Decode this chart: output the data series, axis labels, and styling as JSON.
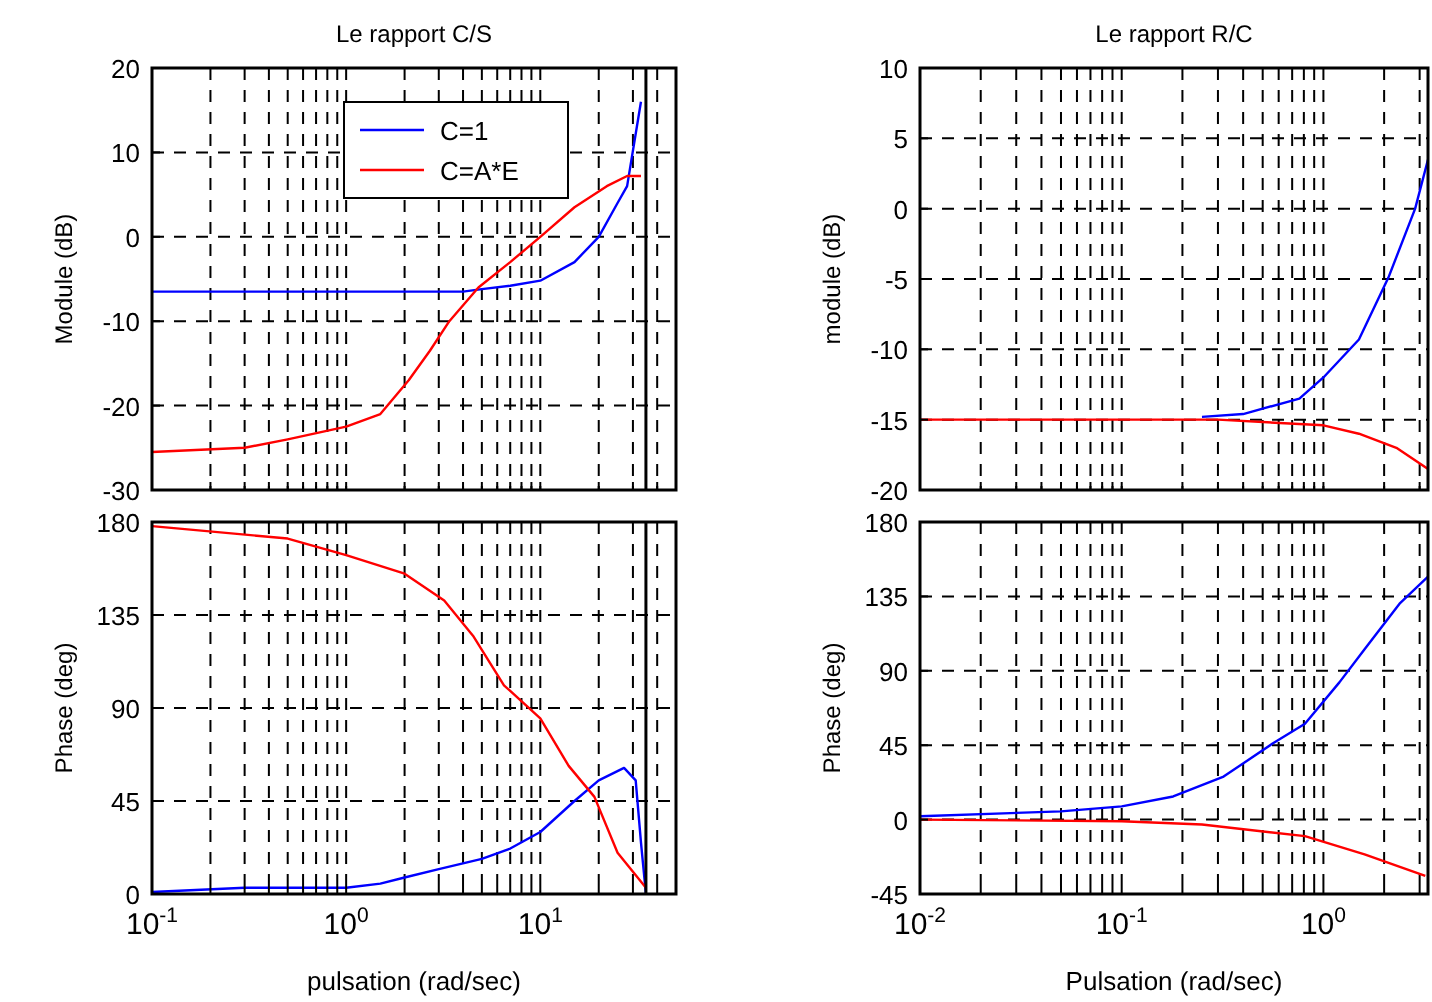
{
  "chart_data": [
    {
      "type": "line",
      "title": "Le rapport C/S",
      "ylabel": "Module (dB)",
      "log": "x",
      "grid": true,
      "legend": "top",
      "tick_labels": "y",
      "line_style": "solid",
      "xlim": [
        0.1,
        50
      ],
      "ylim": [
        -30,
        20
      ],
      "yticks": [
        -30,
        -20,
        -10,
        0,
        10,
        20
      ],
      "xticks": [
        {
          "value": 0.1,
          "label": null
        },
        {
          "value": 0.2,
          "label": null
        },
        {
          "value": 0.3,
          "label": null
        },
        {
          "value": 0.4,
          "label": null
        },
        {
          "value": 0.5,
          "label": null
        },
        {
          "value": 0.6,
          "label": null
        },
        {
          "value": 0.7,
          "label": null
        },
        {
          "value": 0.8,
          "label": null
        },
        {
          "value": 0.9,
          "label": null
        },
        {
          "value": 1,
          "label": null
        },
        {
          "value": 2,
          "label": null
        },
        {
          "value": 3,
          "label": null
        },
        {
          "value": 4,
          "label": null
        },
        {
          "value": 5,
          "label": null
        },
        {
          "value": 6,
          "label": null
        },
        {
          "value": 7,
          "label": null
        },
        {
          "value": 8,
          "label": null
        },
        {
          "value": 9,
          "label": null
        },
        {
          "value": 10,
          "label": null
        },
        {
          "value": 20,
          "label": null
        },
        {
          "value": 30,
          "label": null
        },
        {
          "value": 40,
          "label": null
        }
      ],
      "ref_lines": [
        {
          "axis": "x",
          "value": 35,
          "color": "#000000"
        }
      ],
      "series": [
        {
          "name": "C=1",
          "color": "#0000ff",
          "x": [
            0.1,
            1,
            4,
            5,
            7,
            10,
            15,
            20,
            25,
            28,
            33
          ],
          "values": [
            -6.5,
            -6.5,
            -6.5,
            -6.2,
            -5.8,
            -5.2,
            -3,
            0,
            4,
            6,
            16
          ]
        },
        {
          "name": "C=A*E",
          "color": "#ff0000",
          "x": [
            0.1,
            0.3,
            0.5,
            1,
            1.5,
            2.1,
            2.7,
            3.4,
            4.8,
            7,
            10,
            15,
            22,
            28,
            33
          ],
          "values": [
            -25.5,
            -25,
            -24,
            -22.5,
            -21,
            -17,
            -13.5,
            -10,
            -6,
            -3,
            0,
            3.5,
            6,
            7.2,
            7.2
          ]
        }
      ]
    },
    {
      "type": "line",
      "ylabel": "Phase (deg)",
      "xlabel": "pulsation  (rad/sec)",
      "log": "x",
      "grid": true,
      "line_style": "solid",
      "xlim": [
        0.1,
        50
      ],
      "ylim": [
        0,
        180
      ],
      "yticks": [
        0,
        45,
        90,
        135,
        180
      ],
      "xticks": [
        {
          "value": 0.1,
          "label": "10$^{-1}$"
        },
        {
          "value": 0.2,
          "label": null
        },
        {
          "value": 0.3,
          "label": null
        },
        {
          "value": 0.4,
          "label": null
        },
        {
          "value": 0.5,
          "label": null
        },
        {
          "value": 0.6,
          "label": null
        },
        {
          "value": 0.7,
          "label": null
        },
        {
          "value": 0.8,
          "label": null
        },
        {
          "value": 0.9,
          "label": null
        },
        {
          "value": 1,
          "label": "10$^{0}$"
        },
        {
          "value": 2,
          "label": null
        },
        {
          "value": 3,
          "label": null
        },
        {
          "value": 4,
          "label": null
        },
        {
          "value": 5,
          "label": null
        },
        {
          "value": 6,
          "label": null
        },
        {
          "value": 7,
          "label": null
        },
        {
          "value": 8,
          "label": null
        },
        {
          "value": 9,
          "label": null
        },
        {
          "value": 10,
          "label": "10$^{1}$"
        },
        {
          "value": 20,
          "label": null
        },
        {
          "value": 30,
          "label": null
        },
        {
          "value": 40,
          "label": null
        }
      ],
      "ref_lines": [
        {
          "axis": "x",
          "value": 35,
          "color": "#000000"
        }
      ],
      "series": [
        {
          "color": "#0000ff",
          "x": [
            0.1,
            0.3,
            1,
            1.5,
            2,
            3,
            5,
            7,
            10,
            15,
            20,
            27,
            31,
            33,
            35
          ],
          "values": [
            1,
            3,
            3,
            5,
            8,
            12,
            17,
            22,
            30,
            45,
            55,
            61,
            55,
            25,
            0
          ]
        },
        {
          "color": "#ff0000",
          "x": [
            0.1,
            0.5,
            1,
            2,
            3.2,
            4.5,
            6.5,
            10,
            14,
            19,
            25,
            35
          ],
          "values": [
            178,
            172,
            164,
            155,
            142,
            125,
            101,
            85,
            62,
            47,
            20,
            3
          ]
        }
      ]
    },
    {
      "type": "line",
      "title": "Le rapport R/C",
      "ylabel": "module (dB)",
      "log": "x",
      "grid": true,
      "tick_labels": "y",
      "line_style": "solid",
      "xlim": [
        0.01,
        3.3
      ],
      "ylim": [
        -20,
        10
      ],
      "yticks": [
        -20,
        -15,
        -10,
        -5,
        0,
        5,
        10
      ],
      "xticks": [
        {
          "value": 0.01,
          "label": null
        },
        {
          "value": 0.02,
          "label": null
        },
        {
          "value": 0.03,
          "label": null
        },
        {
          "value": 0.04,
          "label": null
        },
        {
          "value": 0.05,
          "label": null
        },
        {
          "value": 0.06,
          "label": null
        },
        {
          "value": 0.07,
          "label": null
        },
        {
          "value": 0.08,
          "label": null
        },
        {
          "value": 0.09,
          "label": null
        },
        {
          "value": 0.1,
          "label": null
        },
        {
          "value": 0.2,
          "label": null
        },
        {
          "value": 0.3,
          "label": null
        },
        {
          "value": 0.4,
          "label": null
        },
        {
          "value": 0.5,
          "label": null
        },
        {
          "value": 0.6,
          "label": null
        },
        {
          "value": 0.7,
          "label": null
        },
        {
          "value": 0.8,
          "label": null
        },
        {
          "value": 0.9,
          "label": null
        },
        {
          "value": 1,
          "label": null
        },
        {
          "value": 2,
          "label": null
        },
        {
          "value": 3,
          "label": null
        }
      ],
      "series": [
        {
          "color": "#0000ff",
          "x": [
            0.25,
            0.4,
            0.76,
            1,
            1.5,
            2.1,
            2.85,
            3.3
          ],
          "values": [
            -14.8,
            -14.6,
            -13.5,
            -12,
            -9.3,
            -4.9,
            0,
            3.5
          ]
        },
        {
          "color": "#ff0000",
          "x": [
            0.01,
            0.3,
            1,
            1.5,
            2.3,
            3.3
          ],
          "values": [
            -15,
            -15,
            -15.4,
            -16,
            -17,
            -18.5
          ]
        }
      ]
    },
    {
      "type": "line",
      "ylabel": "Phase (deg)",
      "xlabel": "Pulsation   (rad/sec)",
      "log": "x",
      "grid": true,
      "line_style": "solid",
      "xlim": [
        0.01,
        3.3
      ],
      "ylim": [
        -45,
        180
      ],
      "yticks": [
        -45,
        0,
        45,
        90,
        135,
        180
      ],
      "xticks": [
        {
          "value": 0.01,
          "label": "10$^{-2}$"
        },
        {
          "value": 0.02,
          "label": null
        },
        {
          "value": 0.03,
          "label": null
        },
        {
          "value": 0.04,
          "label": null
        },
        {
          "value": 0.05,
          "label": null
        },
        {
          "value": 0.06,
          "label": null
        },
        {
          "value": 0.07,
          "label": null
        },
        {
          "value": 0.08,
          "label": null
        },
        {
          "value": 0.09,
          "label": null
        },
        {
          "value": 0.1,
          "label": "10$^{-1}$"
        },
        {
          "value": 0.2,
          "label": null
        },
        {
          "value": 0.3,
          "label": null
        },
        {
          "value": 0.4,
          "label": null
        },
        {
          "value": 0.5,
          "label": null
        },
        {
          "value": 0.6,
          "label": null
        },
        {
          "value": 0.7,
          "label": null
        },
        {
          "value": 0.8,
          "label": null
        },
        {
          "value": 0.9,
          "label": null
        },
        {
          "value": 1,
          "label": "10$^{0}$"
        },
        {
          "value": 2,
          "label": null
        },
        {
          "value": 3,
          "label": null
        }
      ],
      "series": [
        {
          "color": "#0000ff",
          "x": [
            0.01,
            0.05,
            0.1,
            0.18,
            0.32,
            0.56,
            0.81,
            1.2,
            1.6,
            2.4,
            3.3
          ],
          "values": [
            2,
            5,
            8,
            14,
            26,
            46,
            58,
            83,
            103,
            131,
            147
          ]
        },
        {
          "color": "#ff0000",
          "x": [
            0.01,
            0.1,
            0.25,
            0.81,
            1.6,
            3.2
          ],
          "values": [
            0,
            -1,
            -3,
            -10,
            -21,
            -34
          ]
        }
      ]
    }
  ]
}
